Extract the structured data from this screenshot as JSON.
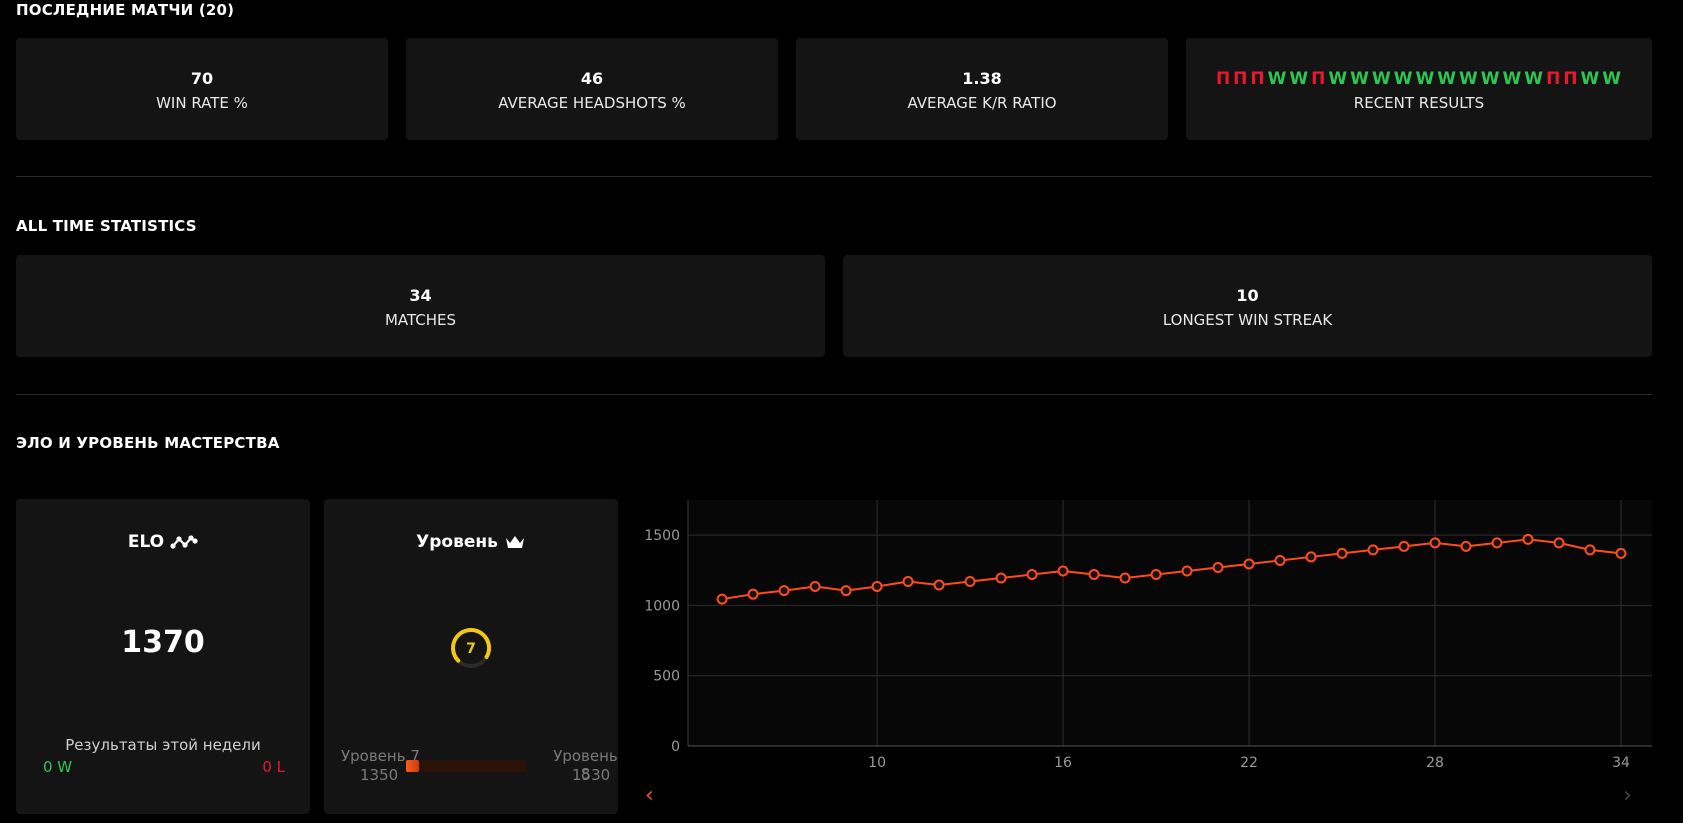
{
  "recent": {
    "title": "ПОСЛЕДНИЕ МАТЧИ (20)",
    "stats": [
      {
        "value": "70",
        "label": "WIN RATE %"
      },
      {
        "value": "46",
        "label": "AVERAGE HEADSHOTS %"
      },
      {
        "value": "1.38",
        "label": "AVERAGE K/R RATIO"
      }
    ],
    "results": [
      "П",
      "П",
      "П",
      "W",
      "W",
      "П",
      "W",
      "W",
      "W",
      "W",
      "W",
      "W",
      "W",
      "W",
      "W",
      "W",
      "П",
      "П",
      "W",
      "W"
    ],
    "results_label": "RECENT RESULTS"
  },
  "all_time": {
    "title": "ALL TIME STATISTICS",
    "matches_value": "34",
    "matches_label": "MATCHES",
    "streak_value": "10",
    "streak_label": "LONGEST WIN STREAK"
  },
  "elo_section": {
    "title": "ЭЛО И УРОВЕНЬ МАСТЕРСТВА",
    "elo": {
      "title": "ELO",
      "icon": "elo-graph-icon",
      "value": "1370",
      "week_label": "Результаты этой недели",
      "week_wins": "0 W",
      "week_losses": "0 L"
    },
    "level": {
      "title": "Уровень",
      "icon": "crown-icon",
      "current": "7",
      "current_label": "Уровень 7",
      "current_elo": "1350",
      "next_label": "Уровень 8",
      "next_elo": "1530",
      "progress": 0.11
    }
  },
  "colors": {
    "win": "#2dc653",
    "loss": "#e8192c",
    "accent": "#ff4b1f",
    "level": "#f5c518"
  },
  "chart_data": {
    "type": "line",
    "x": [
      5,
      6,
      7,
      8,
      9,
      10,
      11,
      12,
      13,
      14,
      15,
      16,
      17,
      18,
      19,
      20,
      21,
      22,
      23,
      24,
      25,
      26,
      27,
      28,
      29,
      30,
      31,
      32,
      33,
      34
    ],
    "y": [
      1045,
      1080,
      1105,
      1135,
      1105,
      1135,
      1170,
      1145,
      1170,
      1195,
      1220,
      1245,
      1220,
      1195,
      1220,
      1245,
      1270,
      1295,
      1320,
      1345,
      1370,
      1395,
      1420,
      1445,
      1420,
      1445,
      1470,
      1445,
      1395,
      1370
    ],
    "xticks": [
      10,
      16,
      22,
      28,
      34
    ],
    "yticks": [
      0,
      500,
      1000,
      1500
    ],
    "ylim": [
      0,
      1750
    ],
    "xlim": [
      3.9,
      35
    ],
    "grid": true,
    "line_color": "#ff4b1f"
  }
}
